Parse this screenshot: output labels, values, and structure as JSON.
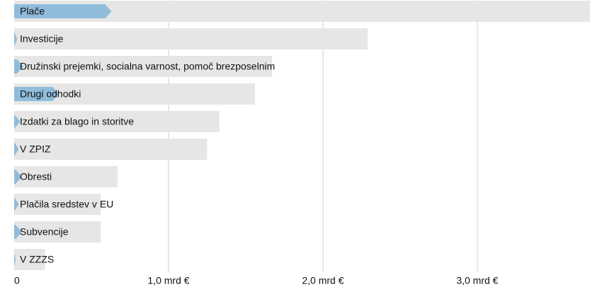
{
  "chart_data": {
    "type": "bar",
    "categories": [
      "Plače",
      "Investicije",
      "Družinski prejemki, socialna varnost, pomoč brezposelnim",
      "Drugi odhodki",
      "Izdatki za blago in storitve",
      "V ZPIZ",
      "Obresti",
      "Plačila sredstev v EU",
      "Subvencije",
      "V ZZZS"
    ],
    "series": [
      {
        "color": "#e6e6e6",
        "values": [
          3.73,
          2.29,
          1.67,
          1.56,
          1.33,
          1.25,
          0.67,
          0.56,
          0.56,
          0.2
        ]
      },
      {
        "color": "#8fbcdb",
        "values": [
          0.63,
          0.02,
          0.06,
          0.29,
          0.04,
          0.03,
          0.05,
          0.03,
          0.05,
          0.01
        ]
      }
    ],
    "xlim": [
      0,
      3.73
    ],
    "xticks": [
      0,
      {
        "value": 1,
        "label": "1,0 mrd €"
      },
      {
        "value": 2,
        "label": "2,0 mrd €"
      },
      {
        "value": 3,
        "label": "3,0 mrd €"
      }
    ],
    "grid": true
  }
}
